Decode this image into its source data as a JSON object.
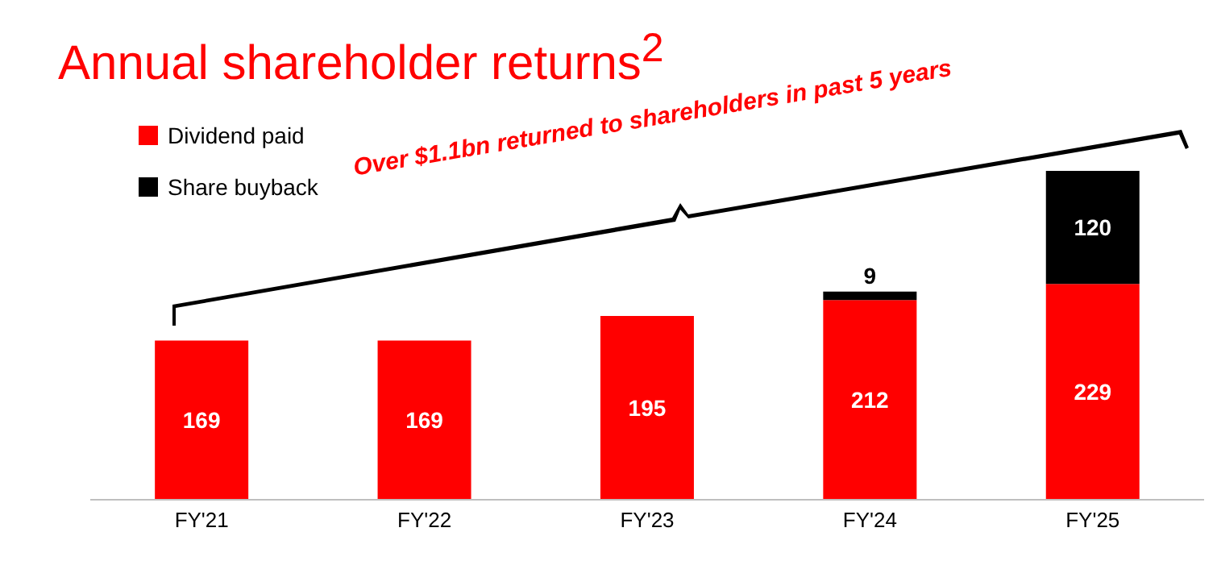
{
  "chart_data": {
    "type": "bar",
    "title": "Annual shareholder returns$^{2}$",
    "categories": [
      "FY'21",
      "FY'22",
      "FY'23",
      "FY'24",
      "FY'25"
    ],
    "series": [
      {
        "name": "Dividend paid",
        "color": "#ff0000",
        "values": [
          169,
          169,
          195,
          212,
          229
        ]
      },
      {
        "name": "Share buyback",
        "color": "#000000",
        "values": [
          null,
          null,
          null,
          9,
          120
        ]
      }
    ],
    "stacked": true,
    "data_labels": true,
    "legend": "top left",
    "grid": false,
    "annotations": [
      "Over $1.1bn returned to shareholders in past 5 years"
    ]
  }
}
